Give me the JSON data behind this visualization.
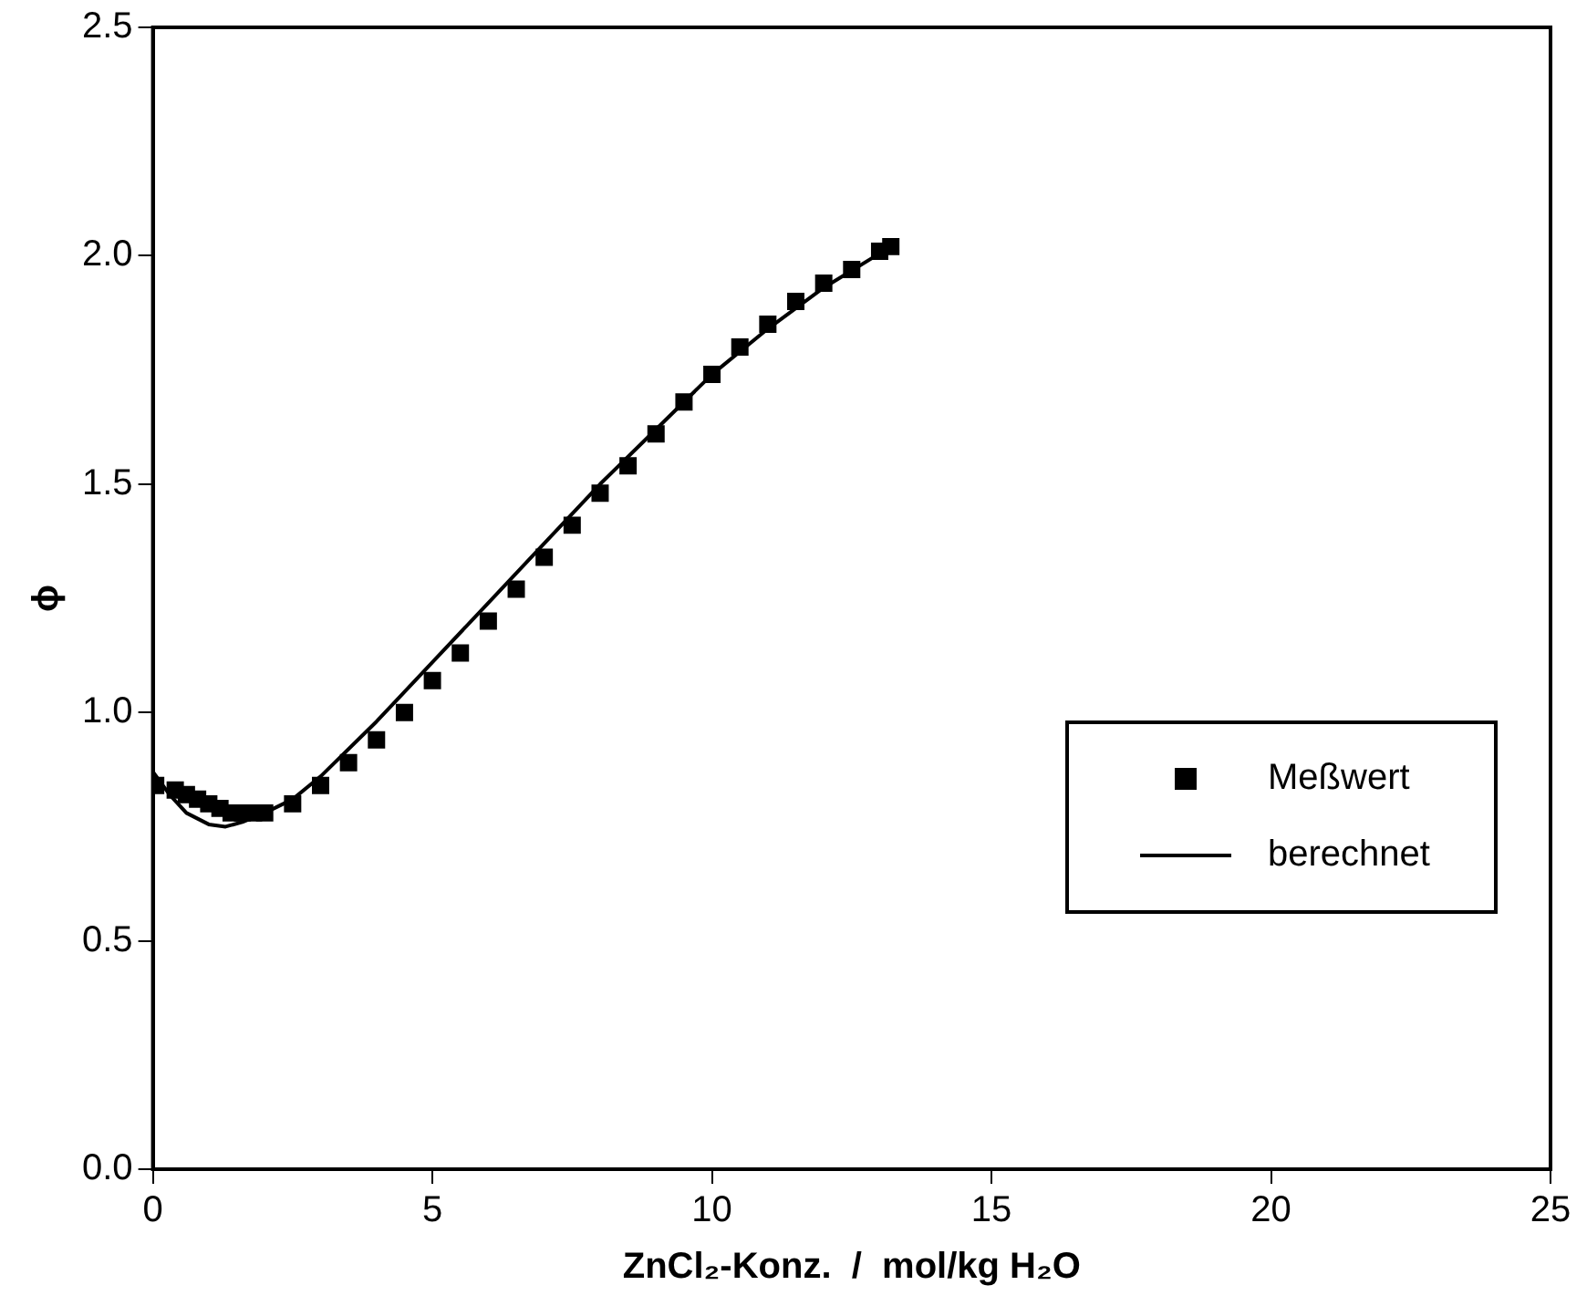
{
  "chart_data": {
    "type": "scatter",
    "xlabel": "ZnCl₂-Konz.  /  mol/kg H₂O",
    "ylabel": "ϕ",
    "xlim": [
      0,
      25
    ],
    "xticks": [
      0,
      5,
      10,
      15,
      20,
      25
    ],
    "ylim": [
      0,
      2.5
    ],
    "yticks": [
      {
        "value": 0,
        "label": "0.0"
      },
      {
        "value": 0.5,
        "label": "0.5"
      },
      {
        "value": 1,
        "label": "1.0"
      },
      {
        "value": 1.5,
        "label": "1.5"
      },
      {
        "value": 2,
        "label": "2.0"
      },
      {
        "value": 2.5,
        "label": "2.5"
      }
    ],
    "grid": false,
    "legend": "right",
    "series": [
      {
        "name": "Meßwert",
        "marker": "square",
        "color": "#000000",
        "x": [
          0.05,
          0.4,
          0.6,
          0.8,
          1.0,
          1.2,
          1.4,
          1.6,
          1.8,
          2.0,
          2.5,
          3.0,
          3.5,
          4.0,
          4.5,
          5.0,
          5.5,
          6.0,
          6.5,
          7.0,
          7.5,
          8.0,
          8.5,
          9.0,
          9.5,
          10.0,
          10.5,
          11.0,
          11.5,
          12.0,
          12.5,
          13.0,
          13.2
        ],
        "values": [
          0.84,
          0.83,
          0.82,
          0.81,
          0.8,
          0.79,
          0.78,
          0.78,
          0.78,
          0.78,
          0.8,
          0.84,
          0.89,
          0.94,
          1.0,
          1.07,
          1.13,
          1.2,
          1.27,
          1.34,
          1.41,
          1.48,
          1.54,
          1.61,
          1.68,
          1.74,
          1.8,
          1.85,
          1.9,
          1.94,
          1.97,
          2.01,
          2.02
        ]
      },
      {
        "name": "berechnet",
        "type": "line",
        "marker": "none",
        "color": "#000000",
        "x": [
          0,
          0.3,
          0.6,
          1.0,
          1.3,
          1.6,
          2.0,
          2.5,
          3.0,
          4.0,
          5.0,
          6.0,
          7.0,
          8.0,
          9.0,
          10.0,
          11.0,
          12.0,
          13.2
        ],
        "values": [
          0.87,
          0.82,
          0.78,
          0.755,
          0.75,
          0.76,
          0.78,
          0.81,
          0.86,
          0.98,
          1.11,
          1.24,
          1.37,
          1.5,
          1.62,
          1.74,
          1.84,
          1.93,
          2.02
        ]
      }
    ]
  }
}
